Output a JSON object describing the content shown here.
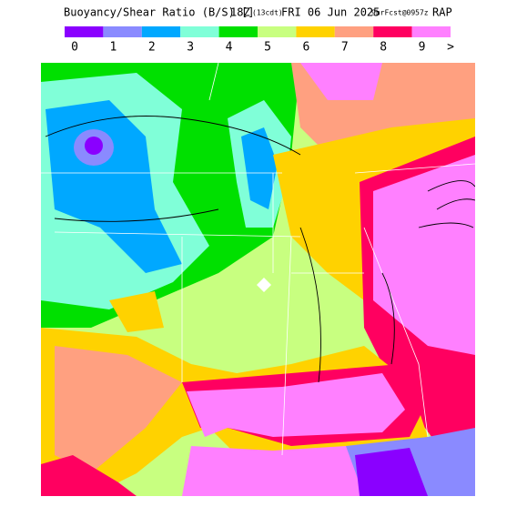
{
  "header": {
    "title": "Buoyancy/Shear Ratio (B/S) []",
    "valid_time": "18Z",
    "local_time": "(13cdt)",
    "date": "FRI 06 Jun 2025",
    "forecast": "9hrFcst@0957z",
    "model": "RAP"
  },
  "legend": {
    "items": [
      {
        "label": "0",
        "color": "#8a00ff"
      },
      {
        "label": "1",
        "color": "#8a8aff"
      },
      {
        "label": "2",
        "color": "#00a8ff"
      },
      {
        "label": "3",
        "color": "#80ffd8"
      },
      {
        "label": "4",
        "color": "#00e000"
      },
      {
        "label": "5",
        "color": "#c8ff80"
      },
      {
        "label": "6",
        "color": "#ffd200"
      },
      {
        "label": "7",
        "color": "#ffa080"
      },
      {
        "label": "8",
        "color": "#ff0060"
      },
      {
        "label": "9",
        "color": "#ff80ff"
      }
    ],
    "overflow_label": ">"
  }
}
